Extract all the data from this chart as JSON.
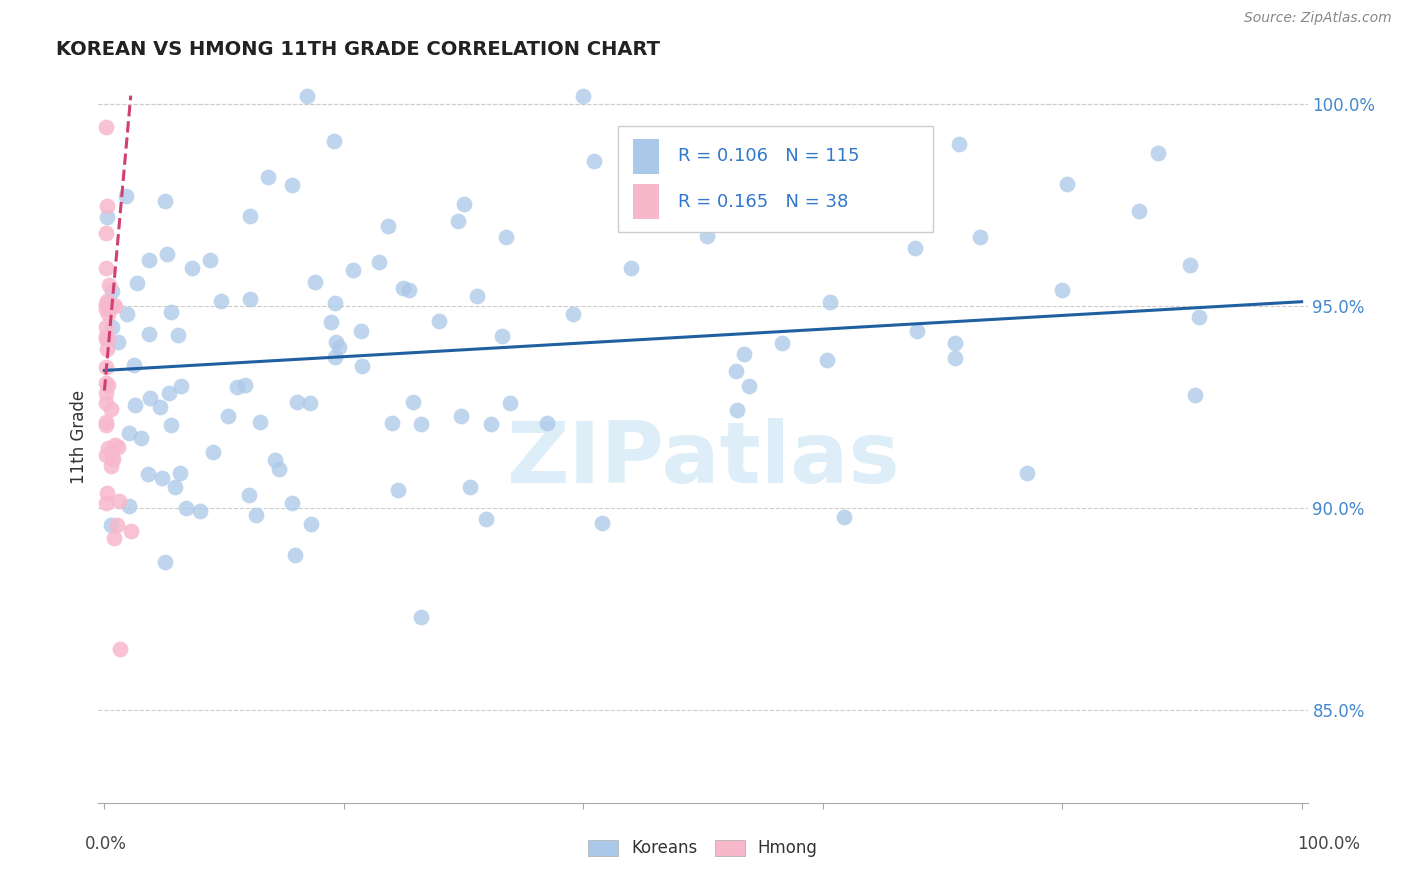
{
  "title": "KOREAN VS HMONG 11TH GRADE CORRELATION CHART",
  "source": "Source: ZipAtlas.com",
  "ylabel": "11th Grade",
  "watermark": "ZIPatlas",
  "legend_korean_R": 0.106,
  "legend_korean_N": 115,
  "legend_hmong_R": 0.165,
  "legend_hmong_N": 38,
  "x_lim": [
    -0.005,
    1.005
  ],
  "y_lim": [
    0.827,
    1.008
  ],
  "korean_color": "#aac8e8",
  "korean_line_color": "#2060a0",
  "hmong_color": "#f7b8cc",
  "hmong_line_color": "#d04070",
  "background_color": "#ffffff",
  "grid_color": "#cccccc",
  "watermark_color": "#ddeef8",
  "right_label_color": "#4488cc",
  "legend_text_color_blue": "#3377cc",
  "legend_text_color_pink": "#cc3366",
  "title_color": "#222222",
  "bottom_label_color": "#444444",
  "blue_line_y0": 0.934,
  "blue_line_y1": 0.951,
  "pink_line_x0": 0.0,
  "pink_line_x1": 0.022,
  "pink_line_y0": 0.929,
  "pink_line_y1": 1.002
}
